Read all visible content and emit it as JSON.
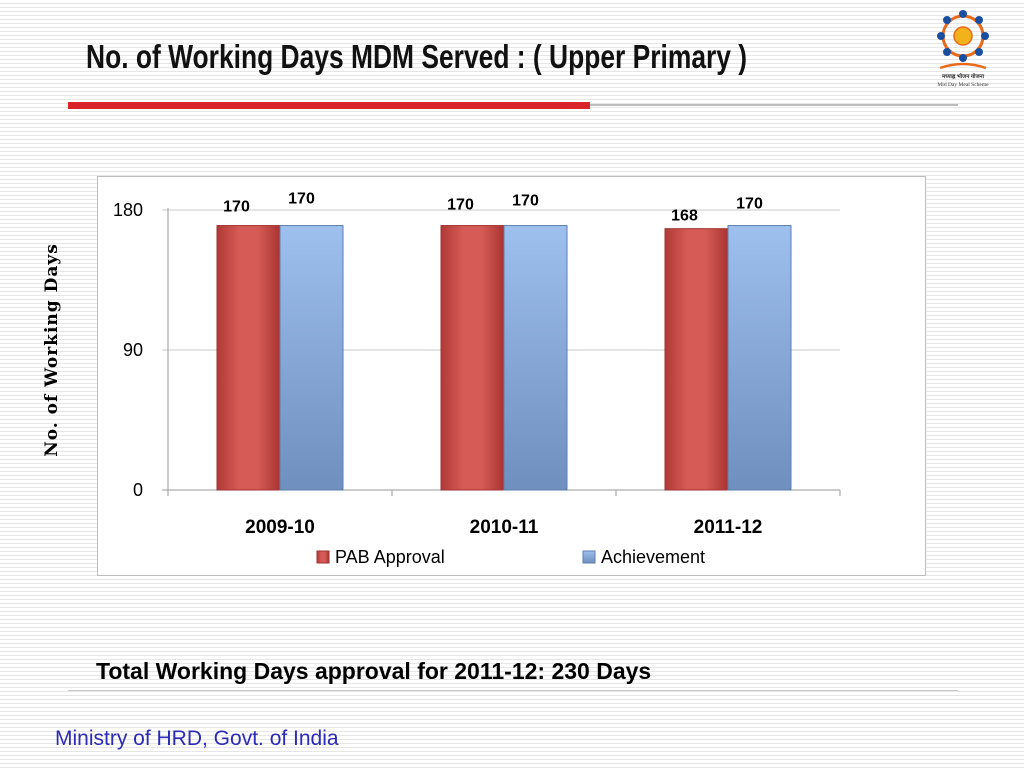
{
  "slide": {
    "title": "No. of Working Days MDM Served : ( Upper Primary )",
    "note": "Total Working Days approval for 2011-12: 230 Days",
    "footer": "Ministry of HRD, Govt. of India",
    "logo_text_1": "मध्याह्न भोजन योजना",
    "logo_text_2": "Mid Day Meal Scheme"
  },
  "colors": {
    "accent_red": "#d9252a",
    "bar_red": "#cf504d",
    "bar_blue": "#8fb0e0",
    "footer_text": "#2b2bb5"
  },
  "chart_data": {
    "type": "bar",
    "title": "",
    "xlabel": "",
    "ylabel": "No. of Working Days",
    "categories": [
      "2009-10",
      "2010-11",
      "2011-12"
    ],
    "series": [
      {
        "name": "PAB Approval",
        "values": [
          170,
          170,
          168
        ]
      },
      {
        "name": "Achievement",
        "values": [
          170,
          170,
          170
        ]
      }
    ],
    "ylim": [
      0,
      180
    ],
    "yticks": [
      "0",
      "90",
      "180"
    ],
    "grid": true,
    "legend": "bottom",
    "data_labels": true
  }
}
